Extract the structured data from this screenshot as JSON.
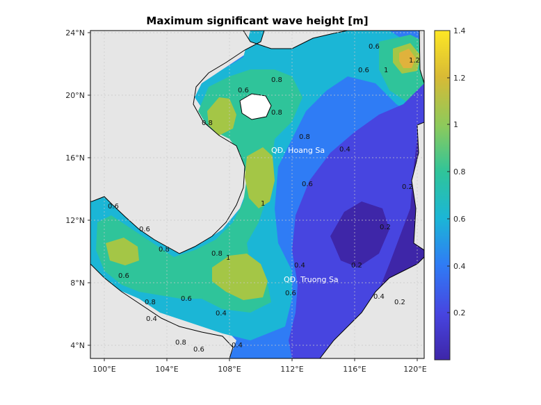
{
  "title": "Maximum significant wave height [m]",
  "x_ticks": [
    "100°E",
    "104°E",
    "108°E",
    "112°E",
    "116°E",
    "120°E"
  ],
  "y_ticks": [
    "24°N",
    "20°N",
    "16°N",
    "12°N",
    "8°N",
    "4°N"
  ],
  "colorbar": {
    "ticks": [
      "1.4",
      "1.2",
      "1",
      "0.8",
      "0.6",
      "0.4",
      "0.2"
    ],
    "range": [
      0,
      1.4
    ],
    "colormap": "parula",
    "colors": [
      "#3e26a8",
      "#4745e0",
      "#2f7cf5",
      "#1bb6d6",
      "#2fc49a",
      "#8cca5c",
      "#d8ba35",
      "#fde725"
    ]
  },
  "region_labels": [
    "QĐ. Hoang Sa",
    "QĐ. Truong Sa"
  ],
  "contour_labels": [
    "0.6",
    "1.2",
    "1",
    "0.6",
    "0.8",
    "0.6",
    "0.8",
    "0.8",
    "0.8",
    "0.4",
    "0.6",
    "0.2",
    "0.2",
    "1",
    "0.6",
    "0.6",
    "0.8",
    "1",
    "0.8",
    "0.6",
    "0.4",
    "0.2",
    "0.4",
    "0.2",
    "0.8",
    "0.6",
    "0.6",
    "0.4",
    "0.8",
    "0.6",
    "0.4",
    "0.4"
  ],
  "colors": {
    "land": "#e6e6e6",
    "coastline": "#000000",
    "grid": "#c8c8c8"
  }
}
